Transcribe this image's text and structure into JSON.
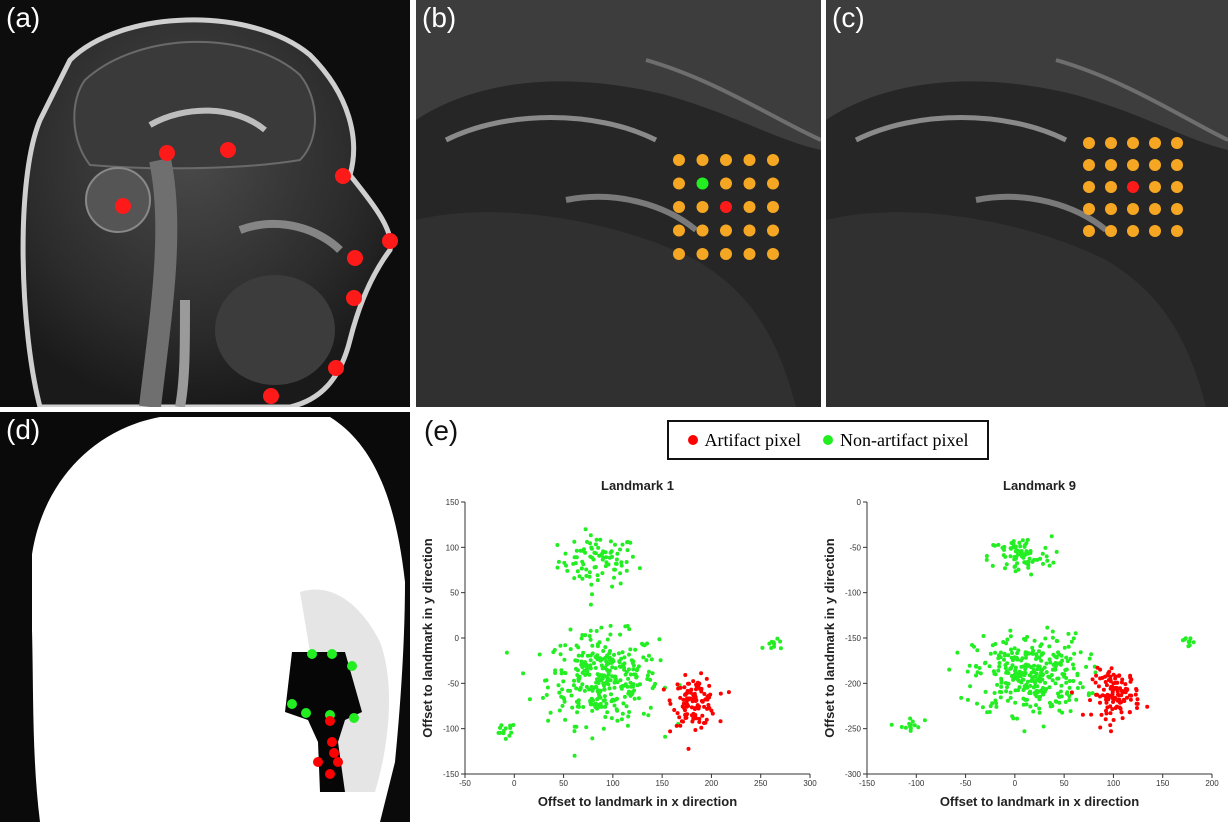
{
  "panels": {
    "a": {
      "label": "(a)"
    },
    "b": {
      "label": "(b)"
    },
    "c": {
      "label": "(c)"
    },
    "d": {
      "label": "(d)"
    },
    "e": {
      "label": "(e)"
    }
  },
  "colors": {
    "artifact": "#ff0000",
    "non_artifact": "#22ee22",
    "grid_dot": "#f5a623",
    "landmark": "#ff1a1a"
  },
  "legend": {
    "artifact_label": "Artifact pixel",
    "non_artifact_label": "Non-artifact pixel"
  },
  "chart_data": [
    {
      "type": "scatter",
      "title": "Landmark 1",
      "xlabel": "Offset to landmark in x direction",
      "ylabel": "Offset to landmark in y direction",
      "xlim": [
        -50,
        300
      ],
      "ylim": [
        -150,
        150
      ],
      "xticks": [
        -50,
        0,
        50,
        100,
        150,
        200,
        250,
        300
      ],
      "yticks": [
        -150,
        -100,
        -50,
        0,
        50,
        100,
        150
      ],
      "series": [
        {
          "name": "Non-artifact pixel",
          "color": "#22ee22",
          "clusters": [
            {
              "cx": 85,
              "cy": 85,
              "sx": 20,
              "sy": 14,
              "n": 90
            },
            {
              "cx": 90,
              "cy": -45,
              "sx": 28,
              "sy": 25,
              "n": 330
            },
            {
              "cx": -10,
              "cy": -103,
              "sx": 6,
              "sy": 5,
              "n": 14
            },
            {
              "cx": 265,
              "cy": -8,
              "sx": 6,
              "sy": 3,
              "n": 10
            }
          ]
        },
        {
          "name": "Artifact pixel",
          "color": "#ff0000",
          "clusters": [
            {
              "cx": 183,
              "cy": -70,
              "sx": 11,
              "sy": 13,
              "n": 120
            }
          ]
        }
      ]
    },
    {
      "type": "scatter",
      "title": "Landmark 9",
      "xlabel": "Offset to landmark in x direction",
      "ylabel": "Offset to landmark in y direction",
      "xlim": [
        -150,
        200
      ],
      "ylim": [
        -300,
        0
      ],
      "xticks": [
        -150,
        -100,
        -50,
        0,
        50,
        100,
        150,
        200
      ],
      "yticks": [
        -300,
        -250,
        -200,
        -150,
        -100,
        -50,
        0
      ],
      "series": [
        {
          "name": "Non-artifact pixel",
          "color": "#22ee22",
          "clusters": [
            {
              "cx": 5,
              "cy": -60,
              "sx": 16,
              "sy": 11,
              "n": 80
            },
            {
              "cx": 15,
              "cy": -190,
              "sx": 28,
              "sy": 22,
              "n": 330
            },
            {
              "cx": -107,
              "cy": -248,
              "sx": 6,
              "sy": 6,
              "n": 14
            },
            {
              "cx": 175,
              "cy": -152,
              "sx": 7,
              "sy": 3,
              "n": 10
            }
          ]
        },
        {
          "name": "Artifact pixel",
          "color": "#ff0000",
          "clusters": [
            {
              "cx": 103,
              "cy": -212,
              "sx": 12,
              "sy": 13,
              "n": 120
            }
          ]
        }
      ]
    }
  ]
}
